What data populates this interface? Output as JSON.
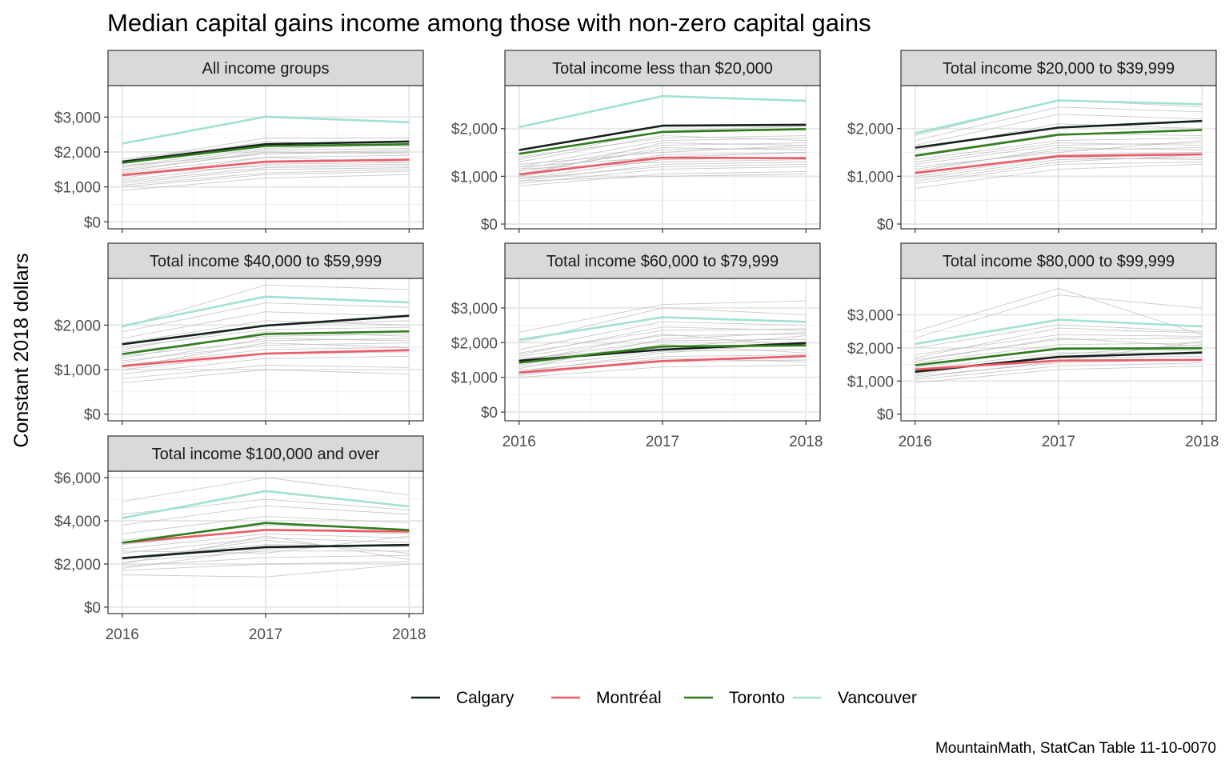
{
  "chart_data": {
    "type": "line",
    "title": "Median capital gains income among those with non-zero capital gains",
    "ylabel": "Constant 2018 dollars",
    "xlabel": "",
    "caption": "MountainMath, StatCan Table 11-10-0070",
    "x": [
      "2016",
      "2017",
      "2018"
    ],
    "legend_position": "bottom",
    "highlight_colors": {
      "Calgary": "#14201a",
      "Montréal": "#ee5a66",
      "Toronto": "#2e7d1a",
      "Vancouver": "#9fe1d4"
    },
    "background_color": "#bdbdbd",
    "legend": [
      "Calgary",
      "Montréal",
      "Toronto",
      "Vancouver"
    ],
    "panels": [
      {
        "label": "All income groups",
        "ylim": [
          -200,
          3900
        ],
        "yticks": [
          0,
          1000,
          2000,
          3000
        ],
        "ytick_labels": [
          "$0",
          "$1,000",
          "$2,000",
          "$3,000"
        ],
        "show_xticks": false,
        "series": [
          {
            "name": "Calgary",
            "values": [
              1720,
              2220,
              2300
            ]
          },
          {
            "name": "Montréal",
            "values": [
              1340,
              1720,
              1780
            ]
          },
          {
            "name": "Toronto",
            "values": [
              1690,
              2170,
              2220
            ]
          },
          {
            "name": "Vancouver",
            "values": [
              2240,
              3010,
              2850
            ]
          }
        ],
        "background": [
          [
            1100,
            1500,
            1550
          ],
          [
            1200,
            1650,
            1700
          ],
          [
            1300,
            1750,
            1800
          ],
          [
            1400,
            1850,
            1900
          ],
          [
            1500,
            1950,
            2000
          ],
          [
            1550,
            2050,
            2100
          ],
          [
            1600,
            2100,
            2200
          ],
          [
            1650,
            2300,
            2150
          ],
          [
            1750,
            2400,
            2400
          ],
          [
            1050,
            1400,
            1500
          ],
          [
            900,
            1250,
            1350
          ],
          [
            1250,
            1850,
            1700
          ],
          [
            1450,
            2000,
            1950
          ],
          [
            1350,
            1600,
            1650
          ],
          [
            1150,
            1550,
            1600
          ],
          [
            1600,
            1950,
            2050
          ],
          [
            1800,
            2250,
            2300
          ],
          [
            1000,
            1350,
            1450
          ]
        ]
      },
      {
        "label": "Total income less than $20,000",
        "ylim": [
          -100,
          2900
        ],
        "yticks": [
          0,
          1000,
          2000
        ],
        "ytick_labels": [
          "$0",
          "$1,000",
          "$2,000"
        ],
        "show_xticks": false,
        "series": [
          {
            "name": "Calgary",
            "values": [
              1550,
              2060,
              2080
            ]
          },
          {
            "name": "Montréal",
            "values": [
              1040,
              1390,
              1380
            ]
          },
          {
            "name": "Toronto",
            "values": [
              1470,
              1930,
              1990
            ]
          },
          {
            "name": "Vancouver",
            "values": [
              2030,
              2680,
              2580
            ]
          }
        ],
        "background": [
          [
            800,
            1050,
            1100
          ],
          [
            850,
            1150,
            1200
          ],
          [
            900,
            1250,
            1300
          ],
          [
            950,
            1350,
            1400
          ],
          [
            1000,
            1450,
            1500
          ],
          [
            1100,
            1550,
            1600
          ],
          [
            1150,
            1650,
            1700
          ],
          [
            1200,
            1750,
            1800
          ],
          [
            1300,
            1850,
            1750
          ],
          [
            1350,
            1950,
            2050
          ],
          [
            900,
            1000,
            1050
          ],
          [
            1050,
            1600,
            1550
          ],
          [
            1250,
            1500,
            1650
          ],
          [
            1150,
            1300,
            1350
          ],
          [
            950,
            1200,
            1250
          ],
          [
            1400,
            1800,
            1850
          ],
          [
            1000,
            1700,
            1650
          ],
          [
            1200,
            1400,
            1500
          ]
        ]
      },
      {
        "label": "Total income $20,000 to $39,999",
        "ylim": [
          -100,
          2900
        ],
        "yticks": [
          0,
          1000,
          2000
        ],
        "ytick_labels": [
          "$0",
          "$1,000",
          "$2,000"
        ],
        "show_xticks": false,
        "series": [
          {
            "name": "Calgary",
            "values": [
              1600,
              2020,
              2160
            ]
          },
          {
            "name": "Montréal",
            "values": [
              1070,
              1420,
              1460
            ]
          },
          {
            "name": "Toronto",
            "values": [
              1430,
              1870,
              1970
            ]
          },
          {
            "name": "Vancouver",
            "values": [
              1900,
              2590,
              2510
            ]
          }
        ],
        "background": [
          [
            750,
            1150,
            1250
          ],
          [
            850,
            1250,
            1300
          ],
          [
            950,
            1350,
            1400
          ],
          [
            1050,
            1450,
            1500
          ],
          [
            1150,
            1550,
            1600
          ],
          [
            1250,
            1650,
            1700
          ],
          [
            1350,
            1750,
            1800
          ],
          [
            1450,
            1900,
            1850
          ],
          [
            1550,
            2100,
            2000
          ],
          [
            1650,
            2300,
            2200
          ],
          [
            1750,
            2450,
            2350
          ],
          [
            1850,
            2600,
            2450
          ],
          [
            900,
            1300,
            1450
          ],
          [
            1200,
            1500,
            1750
          ],
          [
            1000,
            1400,
            1350
          ],
          [
            1300,
            1700,
            1650
          ],
          [
            1100,
            1600,
            1550
          ]
        ]
      },
      {
        "label": "Total income $40,000 to $59,999",
        "ylim": [
          -150,
          3050
        ],
        "yticks": [
          0,
          1000,
          2000
        ],
        "ytick_labels": [
          "$0",
          "$1,000",
          "$2,000"
        ],
        "show_xticks": false,
        "series": [
          {
            "name": "Calgary",
            "values": [
              1570,
              1990,
              2210
            ]
          },
          {
            "name": "Montréal",
            "values": [
              1080,
              1360,
              1440
            ]
          },
          {
            "name": "Toronto",
            "values": [
              1350,
              1800,
              1860
            ]
          },
          {
            "name": "Vancouver",
            "values": [
              1980,
              2640,
              2510
            ]
          }
        ],
        "background": [
          [
            700,
            1000,
            900
          ],
          [
            800,
            1100,
            1050
          ],
          [
            900,
            1250,
            1300
          ],
          [
            1000,
            1350,
            1400
          ],
          [
            1100,
            1450,
            1500
          ],
          [
            1200,
            1550,
            1600
          ],
          [
            1300,
            1650,
            1700
          ],
          [
            1400,
            1750,
            1800
          ],
          [
            1500,
            1900,
            1950
          ],
          [
            1600,
            2100,
            2000
          ],
          [
            1700,
            2300,
            2200
          ],
          [
            1850,
            2500,
            2400
          ],
          [
            1950,
            2900,
            2800
          ],
          [
            1250,
            1850,
            1750
          ],
          [
            1050,
            1600,
            1500
          ],
          [
            1450,
            2000,
            2100
          ],
          [
            1150,
            1700,
            1650
          ]
        ]
      },
      {
        "label": "Total income $60,000 to $79,999",
        "ylim": [
          -250,
          3850
        ],
        "yticks": [
          0,
          1000,
          2000,
          3000
        ],
        "ytick_labels": [
          "$0",
          "$1,000",
          "$2,000",
          "$3,000"
        ],
        "show_xticks": true,
        "series": [
          {
            "name": "Calgary",
            "values": [
              1480,
              1800,
              1990
            ]
          },
          {
            "name": "Montréal",
            "values": [
              1140,
              1470,
              1610
            ]
          },
          {
            "name": "Toronto",
            "values": [
              1420,
              1890,
              1920
            ]
          },
          {
            "name": "Vancouver",
            "values": [
              2080,
              2730,
              2600
            ]
          }
        ],
        "background": [
          [
            1000,
            1300,
            1350
          ],
          [
            1100,
            1450,
            1500
          ],
          [
            1200,
            1600,
            1650
          ],
          [
            1300,
            1750,
            1800
          ],
          [
            1400,
            1900,
            1950
          ],
          [
            1500,
            2050,
            2100
          ],
          [
            1600,
            2200,
            2250
          ],
          [
            1700,
            2350,
            2400
          ],
          [
            1800,
            2600,
            2500
          ],
          [
            2000,
            3000,
            2800
          ],
          [
            2300,
            3100,
            3200
          ],
          [
            1250,
            2100,
            2300
          ],
          [
            1550,
            1850,
            2200
          ],
          [
            1350,
            1950,
            1700
          ],
          [
            1150,
            1700,
            2000
          ],
          [
            1650,
            2450,
            2350
          ],
          [
            1450,
            2250,
            1900
          ],
          [
            1050,
            1550,
            1450
          ]
        ]
      },
      {
        "label": "Total income $80,000 to $99,999",
        "ylim": [
          -200,
          4100
        ],
        "yticks": [
          0,
          1000,
          2000,
          3000
        ],
        "ytick_labels": [
          "$0",
          "$1,000",
          "$2,000",
          "$3,000"
        ],
        "show_xticks": true,
        "series": [
          {
            "name": "Calgary",
            "values": [
              1280,
              1730,
              1860
            ]
          },
          {
            "name": "Montréal",
            "values": [
              1350,
              1620,
              1640
            ]
          },
          {
            "name": "Toronto",
            "values": [
              1480,
              1980,
              1990
            ]
          },
          {
            "name": "Vancouver",
            "values": [
              2120,
              2850,
              2650
            ]
          }
        ],
        "background": [
          [
            950,
            1350,
            1450
          ],
          [
            1050,
            1450,
            1550
          ],
          [
            1150,
            1550,
            1650
          ],
          [
            1250,
            1700,
            1750
          ],
          [
            1350,
            1850,
            1850
          ],
          [
            1450,
            1950,
            2000
          ],
          [
            1550,
            2100,
            2150
          ],
          [
            1650,
            2250,
            2300
          ],
          [
            1800,
            2400,
            2350
          ],
          [
            2000,
            2700,
            2500
          ],
          [
            2300,
            3600,
            3200
          ],
          [
            2500,
            3800,
            2400
          ],
          [
            1200,
            1800,
            2100
          ],
          [
            1400,
            2000,
            1900
          ],
          [
            1100,
            1600,
            2200
          ],
          [
            1600,
            2300,
            2050
          ],
          [
            1700,
            2600,
            2450
          ]
        ]
      },
      {
        "label": "Total income $100,000 and over",
        "ylim": [
          -300,
          6300
        ],
        "yticks": [
          0,
          2000,
          4000,
          6000
        ],
        "ytick_labels": [
          "$0",
          "$2,000",
          "$4,000",
          "$6,000"
        ],
        "show_xticks": true,
        "series": [
          {
            "name": "Calgary",
            "values": [
              2270,
              2780,
              2880
            ]
          },
          {
            "name": "Montréal",
            "values": [
              2980,
              3580,
              3500
            ]
          },
          {
            "name": "Toronto",
            "values": [
              2980,
              3900,
              3570
            ]
          },
          {
            "name": "Vancouver",
            "values": [
              4130,
              5380,
              4670
            ]
          }
        ],
        "background": [
          [
            1500,
            1400,
            2000
          ],
          [
            1700,
            2000,
            2100
          ],
          [
            1900,
            2300,
            2400
          ],
          [
            2100,
            2600,
            2600
          ],
          [
            2300,
            2900,
            2800
          ],
          [
            2500,
            3200,
            3000
          ],
          [
            2700,
            3400,
            3200
          ],
          [
            2900,
            3600,
            3400
          ],
          [
            3100,
            3800,
            3600
          ],
          [
            3400,
            4200,
            3900
          ],
          [
            3800,
            4700,
            4300
          ],
          [
            4300,
            5000,
            4500
          ],
          [
            4900,
            6000,
            5200
          ],
          [
            2000,
            3300,
            2200
          ],
          [
            2600,
            2500,
            3300
          ],
          [
            2200,
            3100,
            2500
          ],
          [
            1800,
            2700,
            2900
          ]
        ]
      }
    ]
  }
}
